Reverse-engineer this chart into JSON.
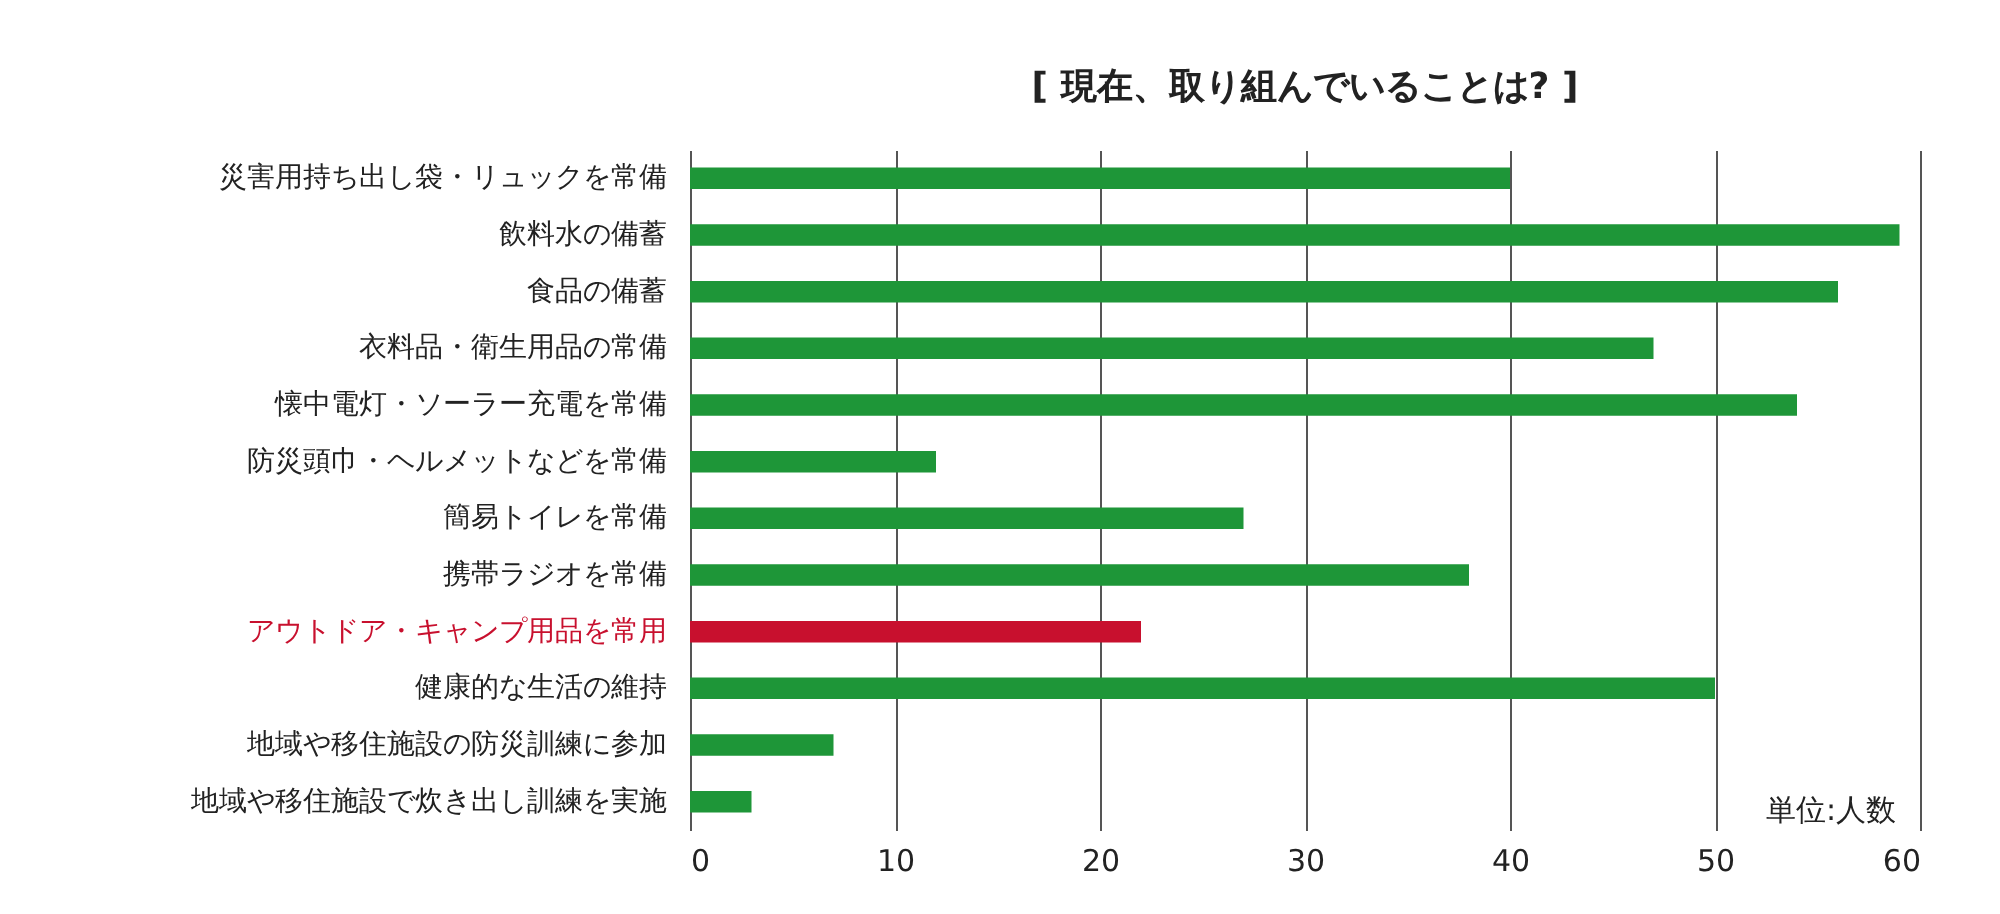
{
  "chart_data": {
    "type": "bar",
    "orientation": "horizontal",
    "title": "[ 現在、取り組んでいることは? ]",
    "categories": [
      "災害用持ち出し袋・リュックを常備",
      "飲料水の備蓄",
      "食品の備蓄",
      "衣料品・衛生用品の常備",
      "懐中電灯・ソーラー充電を常備",
      "防災頭巾・ヘルメットなどを常備",
      "簡易トイレを常備",
      "携帯ラジオを常備",
      "アウトドア・キャンプ用品を常用",
      "健康的な生活の維持",
      "地域や移住施設の防災訓練に参加",
      "地域や移住施設で炊き出し訓練を実施"
    ],
    "values": [
      40,
      59,
      56,
      47,
      54,
      12,
      27,
      38,
      22,
      50,
      7,
      3
    ],
    "colors": [
      "#1e9638",
      "#1e9638",
      "#1e9638",
      "#1e9638",
      "#1e9638",
      "#1e9638",
      "#1e9638",
      "#1e9638",
      "#c8102e",
      "#1e9638",
      "#1e9638",
      "#1e9638"
    ],
    "xlim": [
      0,
      60
    ],
    "xticks": [
      0,
      10,
      20,
      30,
      40,
      50,
      60
    ],
    "grid": "x",
    "annotations": [
      "単位:人数"
    ]
  }
}
